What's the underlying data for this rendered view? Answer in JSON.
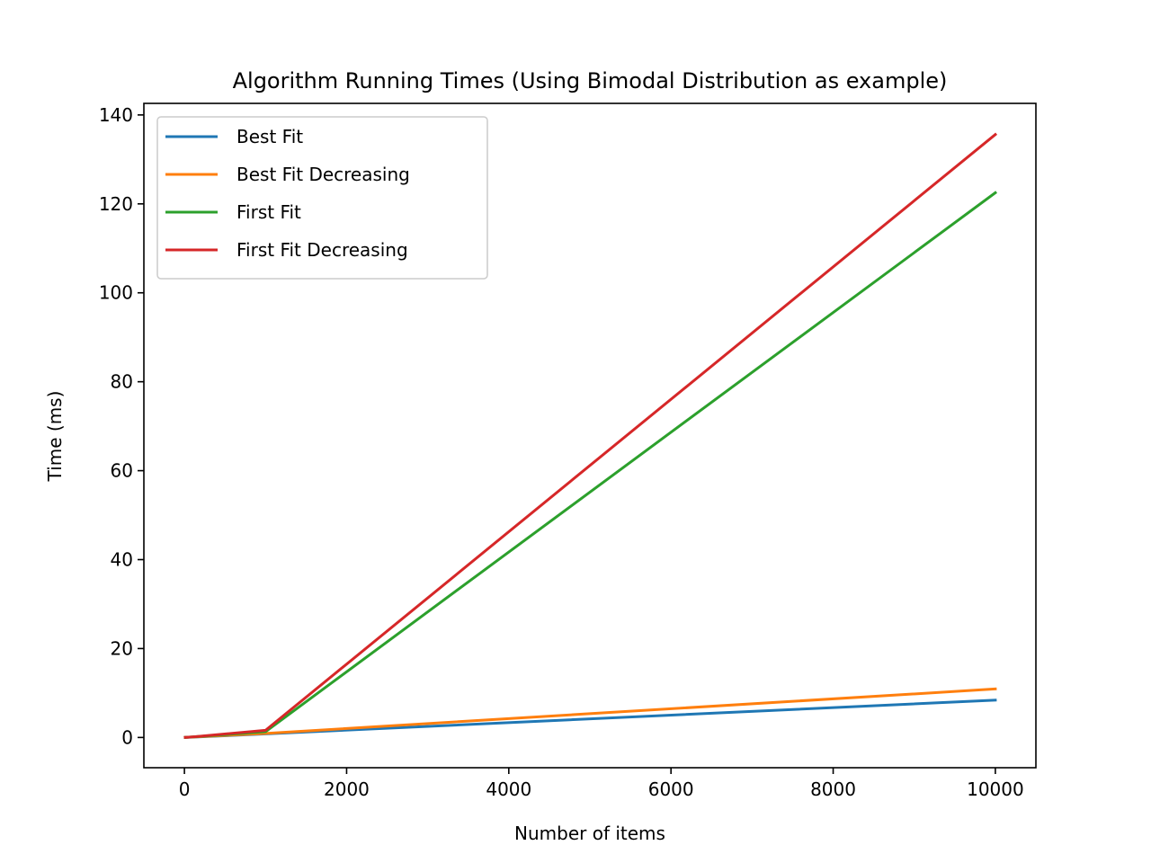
{
  "chart_data": {
    "type": "line",
    "title": "Algorithm Running Times (Using Bimodal Distribution as example)",
    "xlabel": "Number of items",
    "ylabel": "Time (ms)",
    "xlim": [
      -500,
      10500
    ],
    "ylim": [
      -6.8,
      142.6
    ],
    "x_ticks": [
      0,
      2000,
      4000,
      6000,
      8000,
      10000
    ],
    "y_ticks": [
      0,
      20,
      40,
      60,
      80,
      100,
      120,
      140
    ],
    "grid": false,
    "legend_position": "upper-left",
    "x": [
      10,
      100,
      1000,
      10000
    ],
    "series": [
      {
        "name": "Best Fit",
        "color": "#1f77b4",
        "values": [
          0.01,
          0.08,
          0.8,
          8.4
        ]
      },
      {
        "name": "Best Fit Decreasing",
        "color": "#ff7f0e",
        "values": [
          0.01,
          0.09,
          0.9,
          10.9
        ]
      },
      {
        "name": "First Fit",
        "color": "#2ca02c",
        "values": [
          0.01,
          0.12,
          1.3,
          122.5
        ]
      },
      {
        "name": "First Fit Decreasing",
        "color": "#d62728",
        "values": [
          0.01,
          0.14,
          1.6,
          135.6
        ]
      }
    ]
  }
}
